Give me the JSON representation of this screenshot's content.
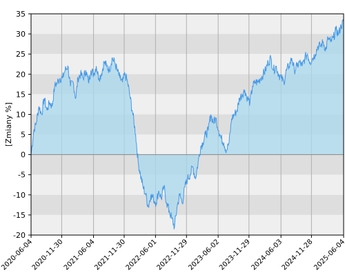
{
  "chart_data": {
    "type": "area",
    "title": "",
    "xlabel": "",
    "ylabel": "[Zmiany %]",
    "ylim": [
      -20,
      35
    ],
    "yticks": [
      35,
      30,
      25,
      20,
      15,
      10,
      5,
      0,
      -5,
      -10,
      -15,
      -20
    ],
    "xlim": [
      "2020-06-04",
      "2025-06-04"
    ],
    "xticks": [
      "2020-06-04",
      "2020-11-30",
      "2021-06-04",
      "2021-11-30",
      "2022-06-01",
      "2022-11-29",
      "2023-06-02",
      "2023-11-29",
      "2024-06-03",
      "2024-11-28",
      "2025-06-04"
    ],
    "grid": "alternating horizontal bands every 5%, vertical lines at x ticks",
    "legend": "none",
    "colors": {
      "line": "#4499e8",
      "fill": "#a8d8ec",
      "band_light": "#efefef",
      "band_dark": "#dedede",
      "grid": "#b0b0b0",
      "zero_line": "#888888"
    },
    "series": [
      {
        "x": [
          "2020-06-04",
          "2020-06-20",
          "2020-07-05",
          "2020-07-20",
          "2020-08-05",
          "2020-08-20",
          "2020-09-05",
          "2020-09-20",
          "2020-10-05",
          "2020-10-20",
          "2020-11-05",
          "2020-11-20",
          "2020-12-05",
          "2020-12-20",
          "2021-01-05",
          "2021-01-20",
          "2021-02-05",
          "2021-02-20",
          "2021-03-05",
          "2021-03-20",
          "2021-04-05",
          "2021-04-20",
          "2021-05-05",
          "2021-05-20",
          "2021-06-05",
          "2021-06-20",
          "2021-07-05",
          "2021-07-20",
          "2021-08-05",
          "2021-08-20",
          "2021-09-05",
          "2021-09-20",
          "2021-10-05",
          "2021-10-20",
          "2021-11-05",
          "2021-11-20",
          "2021-12-05",
          "2021-12-20",
          "2022-01-05",
          "2022-01-20",
          "2022-02-05",
          "2022-02-20",
          "2022-03-05",
          "2022-03-20",
          "2022-04-05",
          "2022-04-20",
          "2022-05-05",
          "2022-05-20",
          "2022-06-05",
          "2022-06-20",
          "2022-07-05",
          "2022-07-20",
          "2022-08-05",
          "2022-08-20",
          "2022-09-05",
          "2022-09-20",
          "2022-10-05",
          "2022-10-20",
          "2022-11-05",
          "2022-11-20",
          "2022-12-05",
          "2022-12-20",
          "2023-01-05",
          "2023-01-20",
          "2023-02-05",
          "2023-02-20",
          "2023-03-05",
          "2023-03-20",
          "2023-04-05",
          "2023-04-20",
          "2023-05-05",
          "2023-05-20",
          "2023-06-05",
          "2023-06-20",
          "2023-07-05",
          "2023-07-20",
          "2023-08-05",
          "2023-08-20",
          "2023-09-05",
          "2023-09-20",
          "2023-10-05",
          "2023-10-20",
          "2023-11-05",
          "2023-11-20",
          "2023-12-05",
          "2023-12-20",
          "2024-01-05",
          "2024-01-20",
          "2024-02-05",
          "2024-02-20",
          "2024-03-05",
          "2024-03-20",
          "2024-04-05",
          "2024-04-20",
          "2024-05-05",
          "2024-05-20",
          "2024-06-05",
          "2024-06-20",
          "2024-07-05",
          "2024-07-20",
          "2024-08-05",
          "2024-08-20",
          "2024-09-05",
          "2024-09-20",
          "2024-10-05",
          "2024-10-20",
          "2024-11-05",
          "2024-11-20",
          "2024-12-05",
          "2024-12-20",
          "2025-01-05",
          "2025-01-20",
          "2025-02-05",
          "2025-02-20",
          "2025-03-05",
          "2025-03-20",
          "2025-04-05",
          "2025-04-20",
          "2025-05-05",
          "2025-05-20",
          "2025-06-04"
        ],
        "y": [
          0,
          6,
          8,
          12,
          10,
          14,
          11,
          13,
          12,
          17,
          18,
          19,
          19,
          21,
          22,
          17,
          18,
          14,
          19,
          20,
          19,
          21,
          18,
          21,
          20,
          22,
          19,
          20,
          23,
          22,
          21,
          24,
          23,
          21,
          19,
          18,
          20,
          18,
          14,
          10,
          5,
          -2,
          -5,
          -8,
          -10,
          -13,
          -10,
          -11,
          -12,
          -9,
          -11,
          -8,
          -12,
          -14,
          -16,
          -18,
          -13,
          -10,
          -12,
          -8,
          -6,
          -5,
          -3,
          -6,
          -2,
          2,
          3,
          5,
          6,
          10,
          8,
          9,
          6,
          4,
          3,
          1,
          3,
          9,
          10,
          11,
          14,
          15,
          16,
          14,
          13,
          17,
          18,
          18,
          19,
          20,
          21,
          23,
          24,
          21,
          22,
          20,
          19,
          18,
          21,
          22,
          24,
          21,
          22,
          23,
          22,
          24,
          25,
          23,
          24,
          25,
          27,
          27,
          28,
          26,
          29,
          28,
          29,
          31,
          30,
          32,
          33
        ]
      }
    ]
  }
}
